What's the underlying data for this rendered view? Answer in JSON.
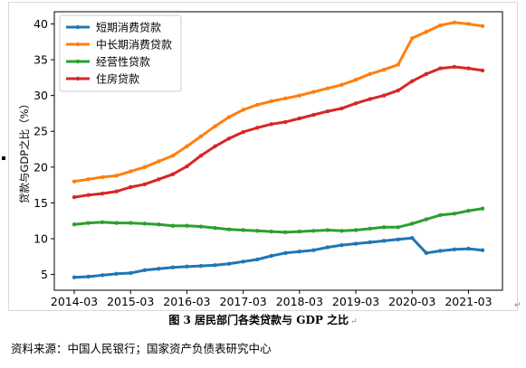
{
  "chart_data": {
    "type": "line",
    "ylabel": "贷款与GDP之比（%）",
    "ylim": [
      2.8,
      41.7
    ],
    "yticks": [
      5,
      10,
      15,
      20,
      25,
      30,
      35,
      40
    ],
    "xtick_labels": [
      "2014-03",
      "2015-03",
      "2016-03",
      "2017-03",
      "2018-03",
      "2019-03",
      "2020-03",
      "2021-03"
    ],
    "x": [
      "2014-03",
      "2014-06",
      "2014-09",
      "2014-12",
      "2015-03",
      "2015-06",
      "2015-09",
      "2015-12",
      "2016-03",
      "2016-06",
      "2016-09",
      "2016-12",
      "2017-03",
      "2017-06",
      "2017-09",
      "2017-12",
      "2018-03",
      "2018-06",
      "2018-09",
      "2018-12",
      "2019-03",
      "2019-06",
      "2019-09",
      "2019-12",
      "2020-03",
      "2020-06",
      "2020-09",
      "2020-12",
      "2021-03",
      "2021-06"
    ],
    "grid": false,
    "legend_position": "top-left",
    "series": [
      {
        "name": "短期消费贷款",
        "color": "#1f77b4",
        "values": [
          4.6,
          4.7,
          4.9,
          5.1,
          5.2,
          5.6,
          5.8,
          6.0,
          6.1,
          6.2,
          6.3,
          6.5,
          6.8,
          7.1,
          7.6,
          8.0,
          8.2,
          8.4,
          8.8,
          9.1,
          9.3,
          9.5,
          9.7,
          9.9,
          10.1,
          8.0,
          8.3,
          8.5,
          8.6,
          8.4
        ]
      },
      {
        "name": "中长期消费贷款",
        "color": "#ff7f0e",
        "values": [
          18.0,
          18.3,
          18.6,
          18.8,
          19.4,
          20.0,
          20.8,
          21.6,
          22.9,
          24.3,
          25.7,
          27.0,
          28.0,
          28.7,
          29.2,
          29.6,
          30.0,
          30.5,
          31.0,
          31.5,
          32.2,
          33.0,
          33.6,
          34.3,
          38.0,
          38.9,
          39.8,
          40.2,
          40.0,
          39.7
        ]
      },
      {
        "name": "经营性贷款",
        "color": "#2ca02c",
        "values": [
          12.0,
          12.2,
          12.3,
          12.2,
          12.2,
          12.1,
          12.0,
          11.8,
          11.8,
          11.7,
          11.5,
          11.3,
          11.2,
          11.1,
          11.0,
          10.9,
          11.0,
          11.1,
          11.2,
          11.1,
          11.2,
          11.4,
          11.6,
          11.6,
          12.1,
          12.7,
          13.3,
          13.5,
          13.9,
          14.2
        ]
      },
      {
        "name": "住房贷款",
        "color": "#d62728",
        "values": [
          15.8,
          16.1,
          16.3,
          16.6,
          17.2,
          17.6,
          18.3,
          19.0,
          20.1,
          21.6,
          22.9,
          24.0,
          24.9,
          25.5,
          26.0,
          26.3,
          26.8,
          27.3,
          27.8,
          28.2,
          28.9,
          29.5,
          30.0,
          30.7,
          32.0,
          33.0,
          33.8,
          34.0,
          33.8,
          33.5
        ]
      }
    ]
  },
  "caption": "图  3 居民部门各类贷款与 GDP 之比",
  "return_mark": "↵",
  "source": "资料来源：中国人民银行；国家资产负债表研究中心"
}
